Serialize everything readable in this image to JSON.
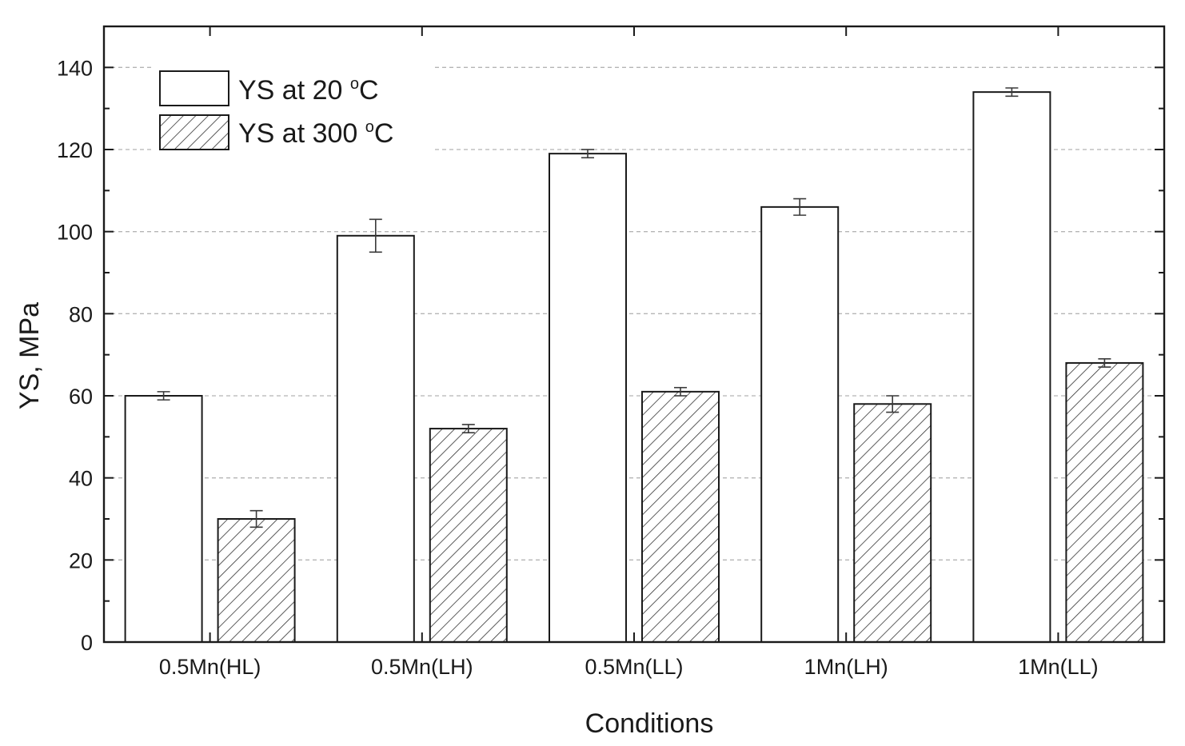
{
  "chart_data": {
    "type": "bar",
    "title": "",
    "xlabel": "Conditions",
    "ylabel": "YS, MPa",
    "ylim": [
      0,
      150
    ],
    "yticks": [
      0,
      20,
      40,
      60,
      80,
      100,
      120,
      140
    ],
    "grid": "horizontal dashed",
    "legend_position": "top-left",
    "categories": [
      "0.5Mn(HL)",
      "0.5Mn(LH)",
      "0.5Mn(LL)",
      "1Mn(LH)",
      "1Mn(LL)"
    ],
    "series": [
      {
        "name": "YS at 20 °C",
        "legend_prefix": "YS at 20 ",
        "legend_degree": "o",
        "legend_unit": "C",
        "fill": "white",
        "values": [
          60,
          99,
          119,
          106,
          134
        ],
        "errors": [
          1,
          4,
          1,
          2,
          1
        ]
      },
      {
        "name": "YS at 300 °C",
        "legend_prefix": "YS at 300 ",
        "legend_degree": "o",
        "legend_unit": "C",
        "fill": "hatched",
        "values": [
          30,
          52,
          61,
          58,
          68
        ],
        "errors": [
          2,
          1,
          1,
          2,
          1
        ]
      }
    ]
  }
}
